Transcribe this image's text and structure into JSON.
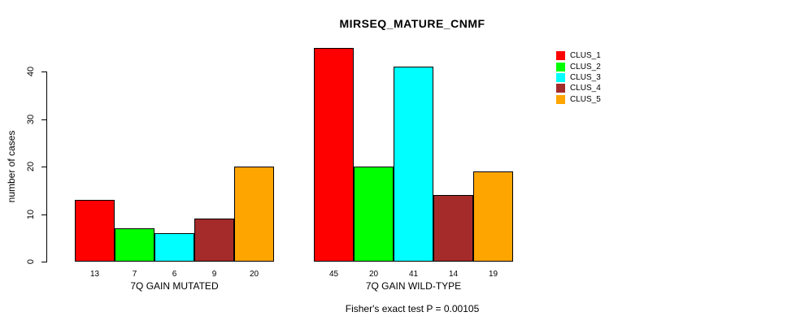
{
  "chart_data": {
    "type": "bar",
    "title": "MIRSEQ_MATURE_CNMF",
    "ylabel": "number of cases",
    "ylim": [
      0,
      45
    ],
    "yticks": [
      0,
      10,
      20,
      30,
      40
    ],
    "grid": false,
    "legend_position": "top-right",
    "categories": [
      "7Q GAIN MUTATED",
      "7Q GAIN WILD-TYPE"
    ],
    "series": [
      {
        "name": "CLUS_1",
        "color": "#FF0000",
        "values": [
          13,
          45
        ]
      },
      {
        "name": "CLUS_2",
        "color": "#00FF00",
        "values": [
          7,
          20
        ]
      },
      {
        "name": "CLUS_3",
        "color": "#00FFFF",
        "values": [
          6,
          41
        ]
      },
      {
        "name": "CLUS_4",
        "color": "#A52A2A",
        "values": [
          9,
          14
        ]
      },
      {
        "name": "CLUS_5",
        "color": "#FFA500",
        "values": [
          20,
          19
        ]
      }
    ],
    "bar_value_labels": [
      [
        13,
        7,
        6,
        9,
        20
      ],
      [
        45,
        20,
        41,
        14,
        19
      ]
    ],
    "footnote": "Fisher's exact test P = 0.00105"
  }
}
